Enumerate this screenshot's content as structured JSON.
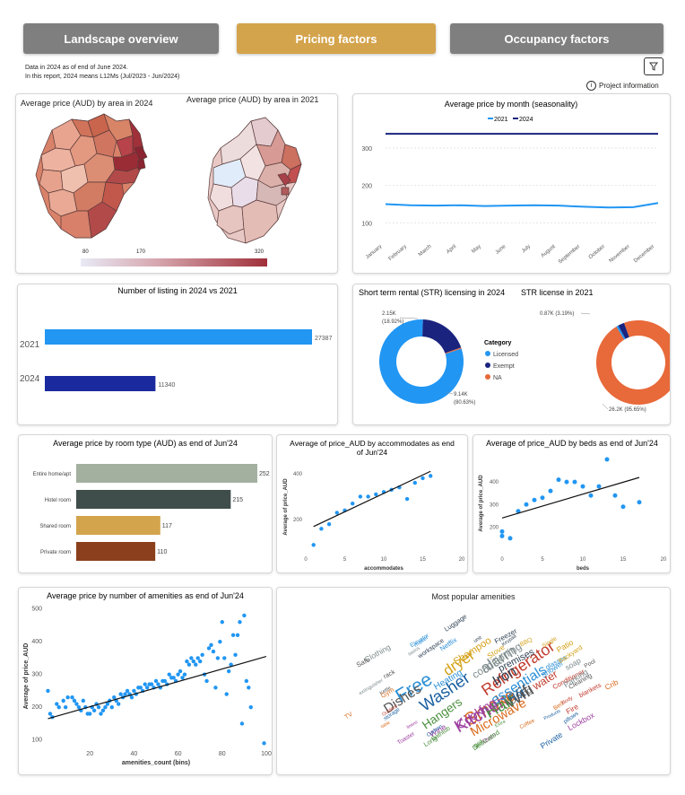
{
  "nav": {
    "landscape": {
      "label": "Landscape overview",
      "color": "#7f7f7f"
    },
    "pricing": {
      "label": "Pricing factors",
      "color": "#d4a44c"
    },
    "occupancy": {
      "label": "Occupancy factors",
      "color": "#7f7f7f"
    }
  },
  "notes": {
    "line1": "Data in 2024 as of end of June 2024.",
    "line2": "In this report, 2024 means L12Ms (Jul/2023 - Jun/2024)"
  },
  "project_info": "Project information",
  "filter_icon": "filter-icon",
  "map_panel": {
    "title_2024": "Average price (AUD) by area in 2024",
    "title_2021": "Average price (AUD) by area in 2021",
    "legend_min": "80",
    "legend_mid": "170",
    "legend_max": "320",
    "colors": {
      "low": "#e8eaf6",
      "high": "#a0303a"
    }
  },
  "chart_data": [
    {
      "id": "seasonality",
      "type": "line",
      "title": "Average price by month (seasonality)",
      "categories": [
        "January",
        "February",
        "March",
        "April",
        "May",
        "June",
        "July",
        "August",
        "September",
        "October",
        "November",
        "December"
      ],
      "series": [
        {
          "name": "2021",
          "color": "#2196f3",
          "values": [
            150,
            147,
            146,
            147,
            145,
            146,
            147,
            146,
            143,
            141,
            142,
            153
          ]
        },
        {
          "name": "2024",
          "color": "#1a237e",
          "values": [
            338,
            338,
            338,
            338,
            338,
            338,
            338,
            338,
            338,
            338,
            338,
            338
          ]
        }
      ],
      "yticks": [
        100,
        200,
        300
      ],
      "ylim": [
        60,
        360
      ],
      "grid": true,
      "legend": "top"
    },
    {
      "id": "listings",
      "type": "bar",
      "orientation": "horizontal",
      "title": "Number of listing in 2024 vs 2021",
      "categories": [
        "2021",
        "2024"
      ],
      "values": [
        27387,
        11340
      ],
      "value_labels": [
        "27387",
        "11340"
      ],
      "colors": [
        "#2196f3",
        "#1a2a9e"
      ]
    },
    {
      "id": "str_2024",
      "type": "pie",
      "title": "Short term rental (STR) licensing in 2024",
      "slices": [
        {
          "name": "Licensed",
          "value": 9.14,
          "color": "#2196f3"
        },
        {
          "name": "Exempt",
          "value": 2.15,
          "color": "#1a237e"
        },
        {
          "name": "NA",
          "value": 0.05,
          "color": "#e8693a"
        }
      ],
      "labels": [
        "2.15K",
        "(18.92%)",
        "9.14K",
        "(80.63%)"
      ]
    },
    {
      "id": "str_2021",
      "type": "pie",
      "title": "STR license in 2021",
      "slices": [
        {
          "name": "NA",
          "value": 26.2,
          "color": "#e8693a"
        },
        {
          "name": "Licensed",
          "value": 0.22,
          "color": "#2196f3"
        },
        {
          "name": "Exempt",
          "value": 0.65,
          "color": "#1a237e"
        }
      ],
      "labels": [
        "0.87K (3.19%)",
        "26.2K (95.65%)"
      ]
    },
    {
      "id": "room_type",
      "type": "bar",
      "orientation": "horizontal",
      "title": "Average price by room type (AUD) as end of Jun'24",
      "categories": [
        "Entire home/apt",
        "Hotel room",
        "Shared room",
        "Private room"
      ],
      "values": [
        252,
        215,
        117,
        110
      ],
      "value_labels": [
        "252",
        "215",
        "117",
        "110"
      ],
      "colors": [
        "#a3b0a0",
        "#3f4d4b",
        "#d4a44c",
        "#8b3f1c"
      ]
    },
    {
      "id": "accommodates",
      "type": "scatter",
      "title": "Average of price_AUD by accommodates as end of Jun'24",
      "xlabel": "accommodates",
      "ylabel": "Average of price_AUD",
      "xticks": [
        0,
        5,
        10,
        15,
        20
      ],
      "yticks": [
        200,
        400
      ],
      "xlim": [
        0,
        20
      ],
      "ylim": [
        60,
        450
      ],
      "points": [
        [
          1,
          90
        ],
        [
          2,
          160
        ],
        [
          3,
          180
        ],
        [
          4,
          230
        ],
        [
          5,
          240
        ],
        [
          6,
          270
        ],
        [
          7,
          300
        ],
        [
          8,
          300
        ],
        [
          9,
          310
        ],
        [
          10,
          320
        ],
        [
          11,
          330
        ],
        [
          12,
          340
        ],
        [
          13,
          290
        ],
        [
          14,
          360
        ],
        [
          15,
          380
        ],
        [
          16,
          390
        ]
      ],
      "trend": [
        [
          1,
          170
        ],
        [
          16,
          410
        ]
      ],
      "color": "#2196f3"
    },
    {
      "id": "beds",
      "type": "scatter",
      "title": "Average of price_AUD by beds as end of Jun'24",
      "xlabel": "beds",
      "ylabel": "Average of price_AUD",
      "xticks": [
        0,
        5,
        10,
        15,
        20
      ],
      "yticks": [
        200,
        300,
        400
      ],
      "xlim": [
        0,
        20
      ],
      "ylim": [
        90,
        520
      ],
      "points": [
        [
          0,
          180
        ],
        [
          0,
          160
        ],
        [
          1,
          150
        ],
        [
          2,
          270
        ],
        [
          3,
          300
        ],
        [
          4,
          320
        ],
        [
          5,
          330
        ],
        [
          6,
          360
        ],
        [
          7,
          410
        ],
        [
          8,
          400
        ],
        [
          9,
          400
        ],
        [
          10,
          380
        ],
        [
          11,
          340
        ],
        [
          12,
          380
        ],
        [
          13,
          500
        ],
        [
          14,
          340
        ],
        [
          15,
          290
        ],
        [
          17,
          310
        ]
      ],
      "trend": [
        [
          0,
          240
        ],
        [
          17,
          420
        ]
      ],
      "color": "#2196f3"
    },
    {
      "id": "amenities",
      "type": "scatter",
      "title": "Average price by number of amenities as end of Jun'24",
      "xlabel": "amenities_count (bins)",
      "ylabel": "Average of price_AUD",
      "xticks": [
        20,
        40,
        60,
        80,
        100
      ],
      "yticks": [
        100,
        200,
        300,
        400,
        500
      ],
      "xlim": [
        0,
        100
      ],
      "ylim": [
        80,
        510
      ],
      "points": [
        [
          1,
          250
        ],
        [
          2,
          180
        ],
        [
          3,
          170
        ],
        [
          5,
          210
        ],
        [
          6,
          200
        ],
        [
          8,
          220
        ],
        [
          9,
          200
        ],
        [
          10,
          230
        ],
        [
          12,
          230
        ],
        [
          13,
          220
        ],
        [
          14,
          210
        ],
        [
          15,
          200
        ],
        [
          16,
          190
        ],
        [
          17,
          220
        ],
        [
          18,
          200
        ],
        [
          19,
          180
        ],
        [
          20,
          180
        ],
        [
          21,
          200
        ],
        [
          22,
          190
        ],
        [
          23,
          210
        ],
        [
          24,
          200
        ],
        [
          25,
          180
        ],
        [
          26,
          190
        ],
        [
          27,
          200
        ],
        [
          28,
          210
        ],
        [
          29,
          220
        ],
        [
          30,
          200
        ],
        [
          31,
          230
        ],
        [
          32,
          220
        ],
        [
          33,
          210
        ],
        [
          34,
          240
        ],
        [
          35,
          230
        ],
        [
          36,
          240
        ],
        [
          37,
          250
        ],
        [
          38,
          240
        ],
        [
          39,
          230
        ],
        [
          40,
          250
        ],
        [
          41,
          240
        ],
        [
          42,
          260
        ],
        [
          43,
          260
        ],
        [
          44,
          250
        ],
        [
          45,
          270
        ],
        [
          46,
          260
        ],
        [
          47,
          270
        ],
        [
          48,
          270
        ],
        [
          49,
          260
        ],
        [
          50,
          280
        ],
        [
          51,
          270
        ],
        [
          52,
          260
        ],
        [
          53,
          280
        ],
        [
          54,
          280
        ],
        [
          55,
          270
        ],
        [
          56,
          300
        ],
        [
          57,
          290
        ],
        [
          58,
          290
        ],
        [
          59,
          280
        ],
        [
          60,
          300
        ],
        [
          61,
          310
        ],
        [
          62,
          290
        ],
        [
          63,
          300
        ],
        [
          64,
          340
        ],
        [
          65,
          330
        ],
        [
          66,
          350
        ],
        [
          67,
          340
        ],
        [
          68,
          330
        ],
        [
          69,
          350
        ],
        [
          70,
          340
        ],
        [
          71,
          360
        ],
        [
          72,
          300
        ],
        [
          73,
          280
        ],
        [
          74,
          380
        ],
        [
          75,
          390
        ],
        [
          76,
          370
        ],
        [
          77,
          260
        ],
        [
          78,
          350
        ],
        [
          79,
          400
        ],
        [
          80,
          460
        ],
        [
          81,
          350
        ],
        [
          82,
          240
        ],
        [
          83,
          310
        ],
        [
          84,
          330
        ],
        [
          85,
          420
        ],
        [
          86,
          360
        ],
        [
          87,
          420
        ],
        [
          88,
          460
        ],
        [
          89,
          150
        ],
        [
          90,
          480
        ],
        [
          91,
          280
        ],
        [
          92,
          260
        ],
        [
          93,
          200
        ],
        [
          99,
          90
        ]
      ],
      "trend": [
        [
          1,
          165
        ],
        [
          100,
          355
        ]
      ],
      "color": "#2196f3"
    }
  ],
  "donut_legend": {
    "title": "Category",
    "items": [
      {
        "label": "Licensed",
        "color": "#2196f3"
      },
      {
        "label": "Exempt",
        "color": "#1a237e"
      },
      {
        "label": "NA",
        "color": "#e8693a"
      }
    ]
  },
  "wordcloud": {
    "title": "Most popular amenities",
    "words": [
      "Free",
      "Wifi",
      "Smoke",
      "Kitchen",
      "Hair",
      "Washer",
      "Refrigerator",
      "alarm",
      "dryer",
      "Iron",
      "essentials",
      "Dishes",
      "Microwave",
      "Cooking",
      "Hangers",
      "Hot",
      "water",
      "conditioning",
      "Shampoo",
      "premises",
      "Heating",
      "Dining",
      "Coffee",
      "Oven",
      "Long",
      "storage",
      "Conditioner",
      "basics",
      "Stove",
      "workspace",
      "Shower",
      "Kettle",
      "table",
      "Wine",
      "Extra",
      "pillows",
      "blankets",
      "Clothing",
      "BBQ",
      "Freezer",
      "glasses",
      "Cleaning",
      "TV",
      "Toaster",
      "Dedicated",
      "Products",
      "Body",
      "soap",
      "Single",
      "unit",
      "maker",
      "rack",
      "Bed",
      "linens",
      "gel",
      "Private",
      "Outdoor",
      "Parking",
      "Patio",
      "Luggage",
      "Elevator",
      "Pool",
      "Gym",
      "Lockbox",
      "Bathtub",
      "Carbon",
      "Fire",
      "extinguisher",
      "Backyard",
      "Keypad",
      "Netflix",
      "Safe",
      "Crib"
    ]
  }
}
